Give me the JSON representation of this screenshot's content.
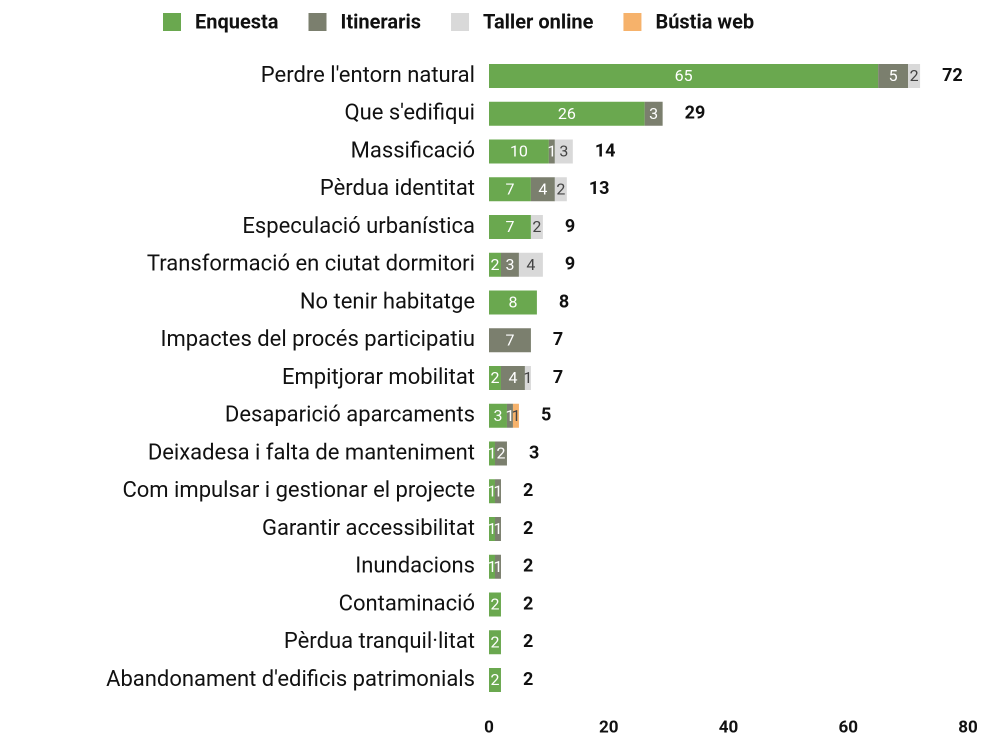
{
  "chart_data": {
    "type": "stacked-barh",
    "categories": [
      "Perdre l'entorn natural",
      "Que s'edifiqui",
      "Massificació",
      "Pèrdua identitat",
      "Especulació urbanística",
      "Transformació en ciutat dormitori",
      "No tenir habitatge",
      "Impactes del procés participatiu",
      "Empitjorar mobilitat",
      "Desaparició aparcaments",
      "Deixadesa i falta de manteniment",
      "Com impulsar i gestionar el projecte",
      "Garantir accessibilitat",
      "Inundacions",
      "Contaminació",
      "Pèrdua tranquil·litat",
      "Abandonament d'edificis patrimonials"
    ],
    "series": [
      {
        "name": "Enquesta",
        "color": "#6aa84f",
        "values": [
          65,
          26,
          10,
          7,
          7,
          2,
          8,
          0,
          2,
          3,
          1,
          1,
          1,
          1,
          2,
          2,
          2
        ]
      },
      {
        "name": "Itineraris",
        "color": "#7b7f6e",
        "values": [
          5,
          3,
          1,
          4,
          0,
          3,
          0,
          7,
          4,
          1,
          2,
          1,
          1,
          1,
          0,
          0,
          0
        ]
      },
      {
        "name": "Taller online",
        "color": "#d9d9d9",
        "values": [
          2,
          0,
          3,
          2,
          2,
          4,
          0,
          0,
          1,
          0,
          0,
          0,
          0,
          0,
          0,
          0,
          0
        ]
      },
      {
        "name": "Bústia web",
        "color": "#f6b26b",
        "values": [
          0,
          0,
          0,
          0,
          0,
          0,
          0,
          0,
          0,
          1,
          0,
          0,
          0,
          0,
          0,
          0,
          0
        ]
      }
    ],
    "totals": [
      72,
      29,
      14,
      13,
      9,
      9,
      8,
      7,
      7,
      5,
      3,
      2,
      2,
      2,
      2,
      2,
      2
    ],
    "xlim": [
      0,
      80
    ],
    "xticks": [
      0,
      20,
      40,
      60,
      80
    ],
    "legend": "top",
    "grid": false
  }
}
